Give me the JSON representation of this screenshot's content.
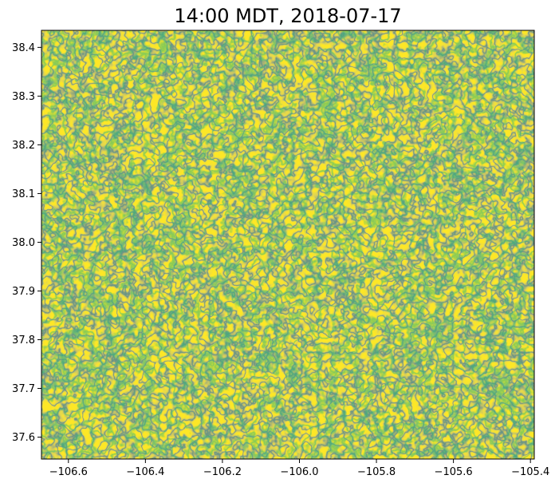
{
  "chart_data": {
    "type": "heatmap",
    "title": "14:00 MDT, 2018-07-17",
    "xlabel": "",
    "ylabel": "",
    "xlim": [
      -106.67,
      -105.39
    ],
    "ylim": [
      37.555,
      38.435
    ],
    "x_ticks": [
      {
        "value": -106.6,
        "label": "−106.6"
      },
      {
        "value": -106.4,
        "label": "−106.4"
      },
      {
        "value": -106.2,
        "label": "−106.2"
      },
      {
        "value": -106.0,
        "label": "−106.0"
      },
      {
        "value": -105.8,
        "label": "−105.8"
      },
      {
        "value": -105.6,
        "label": "−105.6"
      },
      {
        "value": -105.4,
        "label": "−105.4"
      }
    ],
    "y_ticks": [
      {
        "value": 37.6,
        "label": "37.6"
      },
      {
        "value": 37.7,
        "label": "37.7"
      },
      {
        "value": 37.8,
        "label": "37.8"
      },
      {
        "value": 37.9,
        "label": "37.9"
      },
      {
        "value": 38.0,
        "label": "38.0"
      },
      {
        "value": 38.1,
        "label": "38.1"
      },
      {
        "value": 38.2,
        "label": "38.2"
      },
      {
        "value": 38.3,
        "label": "38.3"
      },
      {
        "value": 38.4,
        "label": "38.4"
      }
    ],
    "colormap": [
      "#fde725",
      "#b5de2b",
      "#6ece58",
      "#35b779",
      "#1f9e89",
      "#26828e",
      "#31688e"
    ],
    "grid": false,
    "legend": "none"
  }
}
